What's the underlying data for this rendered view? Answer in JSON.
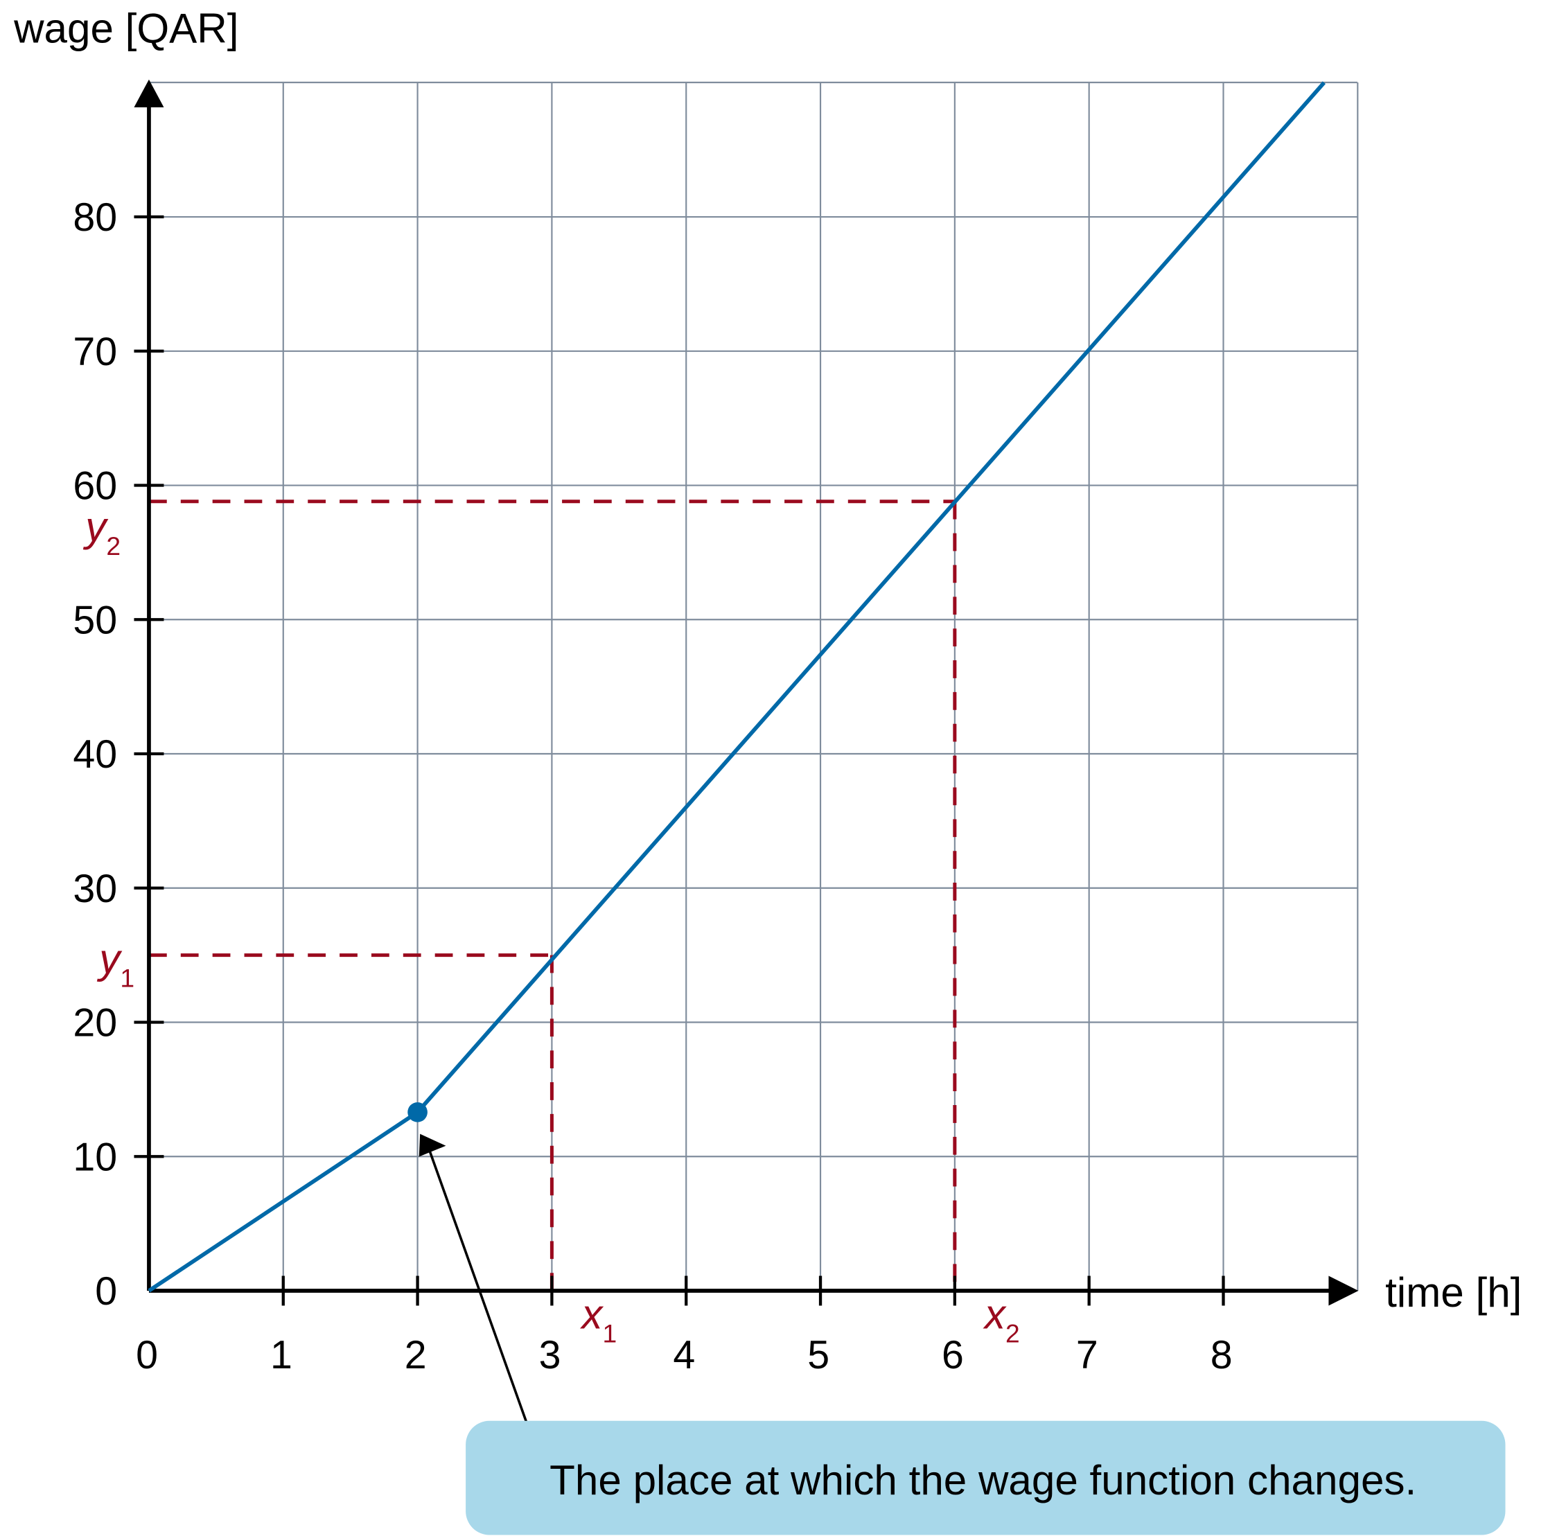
{
  "chart_data": {
    "type": "line",
    "xlabel": "time [h]",
    "ylabel": "wage [QAR]",
    "xlim": [
      0,
      8.75
    ],
    "ylim": [
      0,
      90
    ],
    "x_ticks": [
      "0",
      "1",
      "2",
      "3",
      "4",
      "5",
      "6",
      "7",
      "8"
    ],
    "y_ticks": [
      "0",
      "10",
      "20",
      "30",
      "40",
      "50",
      "60",
      "70",
      "80"
    ],
    "grid": true,
    "series": [
      {
        "x": [
          0,
          2,
          8.75
        ],
        "y": [
          0,
          13.3,
          90
        ]
      }
    ],
    "highlight_point": {
      "x": 2,
      "y": 13.3
    },
    "guides": [
      {
        "x": 3,
        "y": 25,
        "x_label": "x",
        "x_sub": "1",
        "y_label": "y",
        "y_sub": "1"
      },
      {
        "x": 6,
        "y": 58.8,
        "x_label": "x",
        "x_sub": "2",
        "y_label": "y",
        "y_sub": "2"
      }
    ],
    "annotation": "The place at which the wage function changes.",
    "colors": {
      "line": "#0069a8",
      "guide": "#9a0a1e",
      "grid": "#7f8c9c",
      "callout": "#a8d8ea"
    }
  }
}
